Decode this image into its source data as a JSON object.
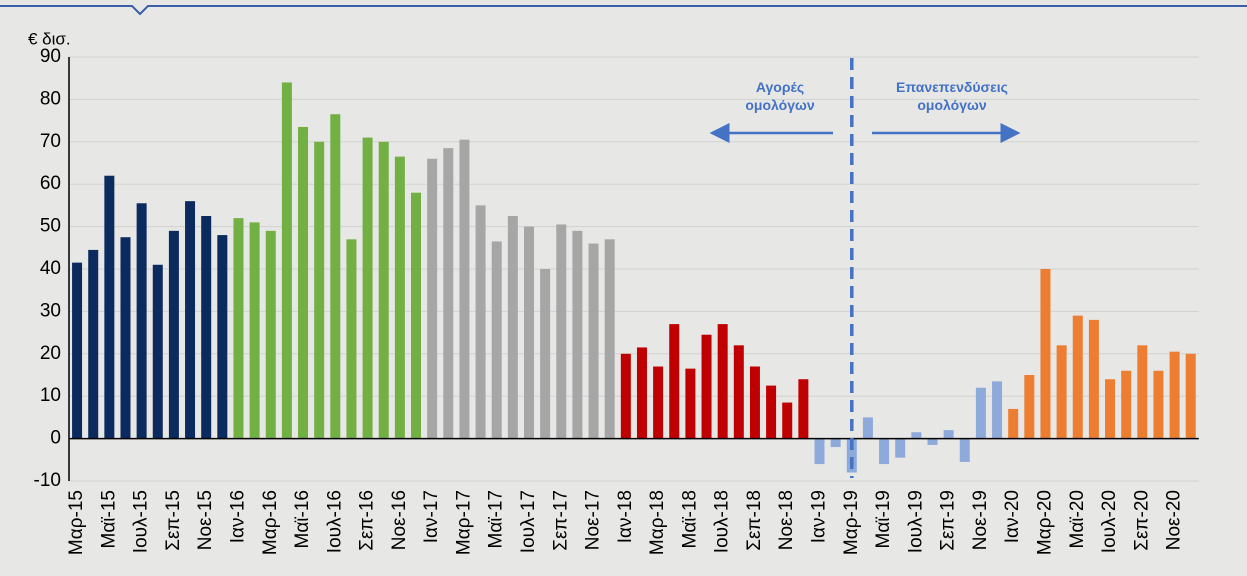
{
  "chart_data": {
    "type": "bar",
    "y_label": "€ δισ.",
    "categories": [
      "Μαρ-15",
      null,
      "Μαϊ-15",
      null,
      "Ιουλ-15",
      null,
      "Σεπ-15",
      null,
      "Νοε-15",
      null,
      "Ιαν-16",
      null,
      "Μαρ-16",
      null,
      "Μαϊ-16",
      null,
      "Ιουλ-16",
      null,
      "Σεπ-16",
      null,
      "Νοε-16",
      null,
      "Ιαν-17",
      null,
      "Μαρ-17",
      null,
      "Μαϊ-17",
      null,
      "Ιουλ-17",
      null,
      "Σεπ-17",
      null,
      "Νοε-17",
      null,
      "Ιαν-18",
      null,
      "Μαρ-18",
      null,
      "Μαϊ-18",
      null,
      "Ιουλ-18",
      null,
      "Σεπ-18",
      null,
      "Νοε-18",
      null,
      "Ιαν-19",
      null,
      "Μαρ-19",
      null,
      "Μαϊ-19",
      null,
      "Ιουλ-19",
      null,
      "Σεπ-19",
      null,
      "Νοε-19",
      null,
      "Ιαν-20",
      null,
      "Μαρ-20",
      null,
      "Μαϊ-20",
      null,
      "Ιουλ-20",
      null,
      "Σεπ-20",
      null,
      "Νοε-20",
      null
    ],
    "values": [
      41.5,
      44.5,
      62,
      47.5,
      55.5,
      41,
      49,
      56,
      52.5,
      48,
      52,
      51,
      49,
      84,
      73.5,
      70,
      76.5,
      47,
      71,
      70,
      66.5,
      58,
      66,
      68.5,
      70.5,
      55,
      46.5,
      52.5,
      50,
      40,
      50.5,
      49,
      46,
      47,
      20,
      21.5,
      17,
      27,
      16.5,
      24.5,
      27,
      22,
      17,
      12.5,
      8.5,
      14,
      -6,
      -2,
      -8,
      5,
      -6,
      -4.5,
      1.5,
      -1.5,
      2,
      -5.5,
      12,
      13.5,
      7,
      15,
      40,
      22,
      29,
      28,
      14,
      16,
      22,
      16,
      20.5,
      20
    ],
    "colors": [
      "#0b2a5e",
      "#0b2a5e",
      "#0b2a5e",
      "#0b2a5e",
      "#0b2a5e",
      "#0b2a5e",
      "#0b2a5e",
      "#0b2a5e",
      "#0b2a5e",
      "#0b2a5e",
      "#72b043",
      "#72b043",
      "#72b043",
      "#72b043",
      "#72b043",
      "#72b043",
      "#72b043",
      "#72b043",
      "#72b043",
      "#72b043",
      "#72b043",
      "#72b043",
      "#a6a6a6",
      "#a6a6a6",
      "#a6a6a6",
      "#a6a6a6",
      "#a6a6a6",
      "#a6a6a6",
      "#a6a6a6",
      "#a6a6a6",
      "#a6a6a6",
      "#a6a6a6",
      "#a6a6a6",
      "#a6a6a6",
      "#c00000",
      "#c00000",
      "#c00000",
      "#c00000",
      "#c00000",
      "#c00000",
      "#c00000",
      "#c00000",
      "#c00000",
      "#c00000",
      "#c00000",
      "#c00000",
      "#8eaadb",
      "#8eaadb",
      "#8eaadb",
      "#8eaadb",
      "#8eaadb",
      "#8eaadb",
      "#8eaadb",
      "#8eaadb",
      "#8eaadb",
      "#8eaadb",
      "#8eaadb",
      "#8eaadb",
      "#ed7d31",
      "#ed7d31",
      "#ed7d31",
      "#ed7d31",
      "#ed7d31",
      "#ed7d31",
      "#ed7d31",
      "#ed7d31",
      "#ed7d31",
      "#ed7d31",
      "#ed7d31",
      "#ed7d31"
    ],
    "ylim": [
      -10,
      90
    ],
    "yticks": [
      -10,
      0,
      10,
      20,
      30,
      40,
      50,
      60,
      70,
      80,
      90
    ],
    "grid": true,
    "annotations": [
      "Αγορές ομολόγων",
      "Επανεπενδύσεις ομολόγων"
    ]
  }
}
